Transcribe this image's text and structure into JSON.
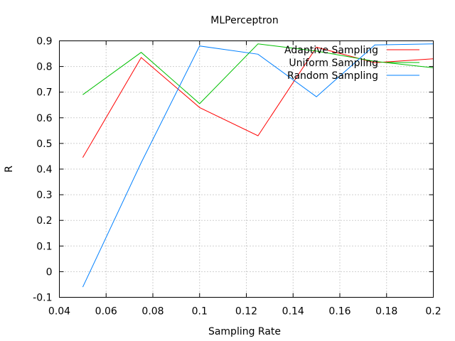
{
  "chart_data": {
    "type": "line",
    "title": "MLPerceptron",
    "xlabel": "Sampling Rate",
    "ylabel": "R",
    "xlim": [
      0.04,
      0.2
    ],
    "ylim": [
      -0.1,
      0.9
    ],
    "x_ticks": [
      "0.04",
      "0.06",
      "0.08",
      "0.1",
      "0.12",
      "0.14",
      "0.16",
      "0.18",
      "0.2"
    ],
    "x_tick_values": [
      0.04,
      0.06,
      0.08,
      0.1,
      0.12,
      0.14,
      0.16,
      0.18,
      0.2
    ],
    "y_ticks": [
      "0.9",
      "0.8",
      "0.7",
      "0.6",
      "0.5",
      "0.4",
      "0.3",
      "0.2",
      "0.1",
      "0",
      "-0.1"
    ],
    "y_tick_values": [
      0.9,
      0.8,
      0.7,
      0.6,
      0.5,
      0.4,
      0.3,
      0.2,
      0.1,
      0,
      -0.1
    ],
    "grid": true,
    "legend_position": "top-right",
    "x": [
      0.05,
      0.075,
      0.1,
      0.125,
      0.15,
      0.175,
      0.2
    ],
    "series": [
      {
        "name": "Adaptive Sampling",
        "color": "#ff0000",
        "values": [
          0.445,
          0.835,
          0.64,
          0.53,
          0.875,
          0.815,
          0.83
        ]
      },
      {
        "name": "Uniform Sampling",
        "color": "#00c000",
        "values": [
          0.69,
          0.855,
          0.655,
          0.888,
          0.86,
          0.82,
          0.795
        ]
      },
      {
        "name": "Random Sampling",
        "color": "#0080ff",
        "values": [
          -0.06,
          0.425,
          0.88,
          0.848,
          0.682,
          0.884,
          0.888
        ]
      }
    ]
  }
}
